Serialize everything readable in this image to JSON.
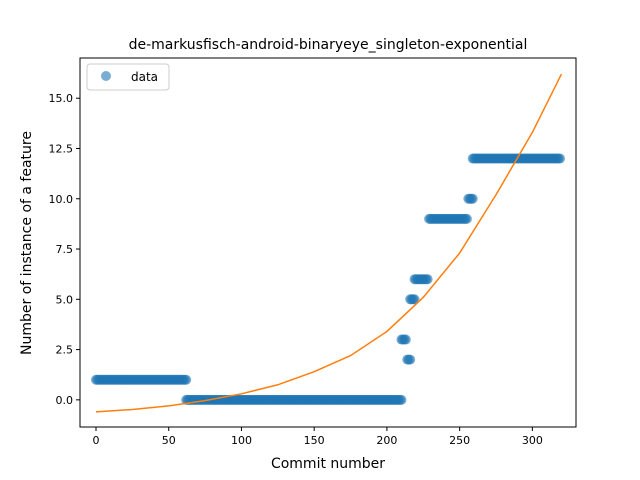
{
  "chart_data": {
    "type": "scatter",
    "title": "de-markusfisch-android-binaryeye_singleton-exponential",
    "xlabel": "Commit number",
    "ylabel": "Number of instance of a feature",
    "xlim": [
      -11,
      330
    ],
    "ylim": [
      -1.35,
      17.0
    ],
    "xticks": [
      0,
      50,
      100,
      150,
      200,
      250,
      300
    ],
    "xtick_labels": [
      "0",
      "50",
      "100",
      "150",
      "200",
      "250",
      "300"
    ],
    "yticks": [
      0.0,
      2.5,
      5.0,
      7.5,
      10.0,
      12.5,
      15.0
    ],
    "ytick_labels": [
      "0.0",
      "2.5",
      "5.0",
      "7.5",
      "10.0",
      "12.5",
      "15.0"
    ],
    "grid": false,
    "legend": {
      "placement": "top-left",
      "entries": [
        "data"
      ]
    },
    "series": [
      {
        "name": "data",
        "kind": "points",
        "color": "#1f77b4",
        "alpha": 0.6,
        "segments": [
          {
            "x_start": 0,
            "x_end": 62,
            "y": 1
          },
          {
            "x_start": 62,
            "x_end": 210,
            "y": 0
          },
          {
            "x_start": 210,
            "x_end": 213,
            "y": 3
          },
          {
            "x_start": 214,
            "x_end": 216,
            "y": 2
          },
          {
            "x_start": 216,
            "x_end": 219,
            "y": 5
          },
          {
            "x_start": 219,
            "x_end": 228,
            "y": 6
          },
          {
            "x_start": 229,
            "x_end": 255,
            "y": 9
          },
          {
            "x_start": 256,
            "x_end": 259,
            "y": 10
          },
          {
            "x_start": 259,
            "x_end": 319,
            "y": 12
          }
        ]
      },
      {
        "kind": "fit-curve",
        "color": "#ff7f0e",
        "points": [
          [
            0,
            -0.6
          ],
          [
            25,
            -0.48
          ],
          [
            50,
            -0.3
          ],
          [
            75,
            -0.04
          ],
          [
            100,
            0.3
          ],
          [
            125,
            0.75
          ],
          [
            150,
            1.4
          ],
          [
            175,
            2.2
          ],
          [
            200,
            3.4
          ],
          [
            225,
            5.1
          ],
          [
            250,
            7.3
          ],
          [
            275,
            10.2
          ],
          [
            300,
            13.3
          ],
          [
            320,
            16.2
          ]
        ]
      }
    ]
  }
}
